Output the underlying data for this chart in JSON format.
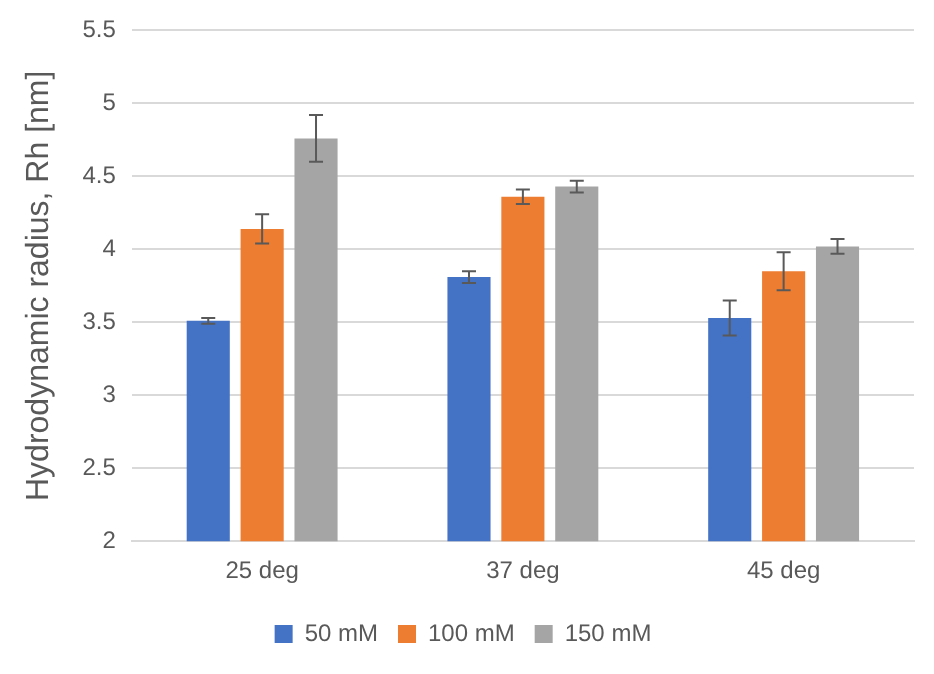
{
  "chart_data": {
    "type": "bar",
    "ylabel": "Hydrodynamic radius, Rh [nm]",
    "categories": [
      "25 deg",
      "37 deg",
      "45 deg"
    ],
    "series": [
      {
        "name": "50 mM",
        "color": "#4472c4",
        "values": [
          3.51,
          3.81,
          3.53
        ],
        "errors": [
          0.02,
          0.04,
          0.12
        ]
      },
      {
        "name": "100 mM",
        "color": "#ed7d31",
        "values": [
          4.14,
          4.36,
          3.85
        ],
        "errors": [
          0.1,
          0.05,
          0.13
        ]
      },
      {
        "name": "150 mM",
        "color": "#a5a5a5",
        "values": [
          4.76,
          4.43,
          4.02
        ],
        "errors": [
          0.16,
          0.04,
          0.05
        ]
      }
    ],
    "ylim": [
      2,
      5.5
    ],
    "yticks": [
      2,
      2.5,
      3,
      3.5,
      4,
      4.5,
      5,
      5.5
    ],
    "grid": "y",
    "legend": "bottom"
  }
}
